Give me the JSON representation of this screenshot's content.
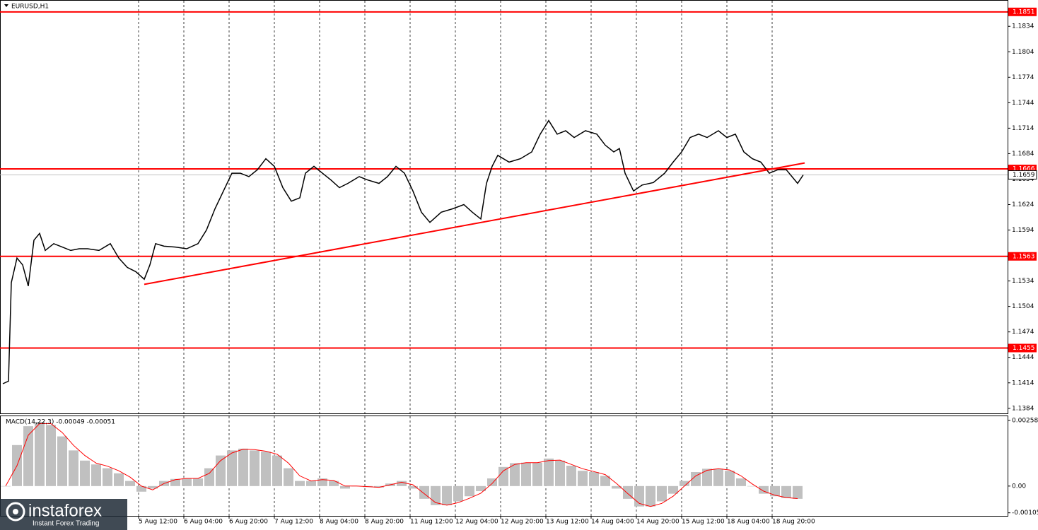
{
  "chart_data": [
    {
      "type": "line",
      "title": "EURUSD,H1",
      "color": "#000000",
      "x": [
        0,
        2,
        3,
        5,
        7,
        9,
        11,
        13,
        15,
        18,
        21,
        24,
        27,
        30,
        34,
        38,
        41,
        44,
        47,
        50,
        52,
        54,
        57,
        61,
        65,
        69,
        72,
        75,
        78,
        81,
        84,
        87,
        90,
        93,
        96,
        99,
        102,
        105,
        107,
        110,
        113,
        116,
        119,
        122,
        126,
        129,
        133,
        136,
        139,
        142,
        145,
        148,
        151,
        155,
        159,
        163,
        166,
        169,
        171,
        173,
        175,
        179,
        183,
        187,
        190,
        193,
        196,
        199,
        202,
        206,
        210,
        213,
        216,
        218,
        220,
        223,
        226,
        230,
        234,
        237,
        240,
        243,
        246,
        249,
        253,
        256,
        259,
        262,
        265,
        268,
        271,
        274,
        277,
        279,
        281,
        283
      ],
      "values": [
        1.1413,
        1.1416,
        1.1532,
        1.1561,
        1.1553,
        1.1528,
        1.1582,
        1.159,
        1.157,
        1.1578,
        1.1574,
        1.157,
        1.1572,
        1.1572,
        1.157,
        1.1578,
        1.1561,
        1.155,
        1.1545,
        1.1536,
        1.1553,
        1.1578,
        1.1575,
        1.1574,
        1.1572,
        1.1578,
        1.1594,
        1.1619,
        1.164,
        1.1661,
        1.1661,
        1.1657,
        1.1665,
        1.1678,
        1.1669,
        1.1644,
        1.1628,
        1.1632,
        1.1661,
        1.1669,
        1.1661,
        1.1653,
        1.1644,
        1.1649,
        1.1657,
        1.1653,
        1.1649,
        1.1657,
        1.1669,
        1.1661,
        1.164,
        1.1615,
        1.1603,
        1.1615,
        1.1619,
        1.1624,
        1.1615,
        1.1607,
        1.1649,
        1.1669,
        1.1682,
        1.1674,
        1.1678,
        1.1686,
        1.1707,
        1.1723,
        1.1707,
        1.1711,
        1.1703,
        1.1711,
        1.1707,
        1.1694,
        1.1686,
        1.169,
        1.1661,
        1.164,
        1.1647,
        1.165,
        1.1661,
        1.1674,
        1.1686,
        1.1703,
        1.1707,
        1.1703,
        1.1711,
        1.1703,
        1.1707,
        1.1686,
        1.1678,
        1.1674,
        1.1661,
        1.1665,
        1.1665,
        1.1657,
        1.1649,
        1.1659
      ],
      "xlim": [
        -1,
        355.25
      ],
      "xticks": [
        {
          "value": 48,
          "label": "5 Aug 12:00"
        },
        {
          "value": 64,
          "label": "6 Aug 04:00"
        },
        {
          "value": 80,
          "label": "6 Aug 20:00"
        },
        {
          "value": 96,
          "label": "7 Aug 12:00"
        },
        {
          "value": 112,
          "label": "8 Aug 04:00"
        },
        {
          "value": 128,
          "label": "8 Aug 20:00"
        },
        {
          "value": 144,
          "label": "11 Aug 12:00"
        },
        {
          "value": 160,
          "label": "12 Aug 04:00"
        },
        {
          "value": 176,
          "label": "12 Aug 20:00"
        },
        {
          "value": 192,
          "label": "13 Aug 12:00"
        },
        {
          "value": 208,
          "label": "14 Aug 04:00"
        },
        {
          "value": 224,
          "label": "14 Aug 20:00"
        },
        {
          "value": 240,
          "label": "15 Aug 12:00"
        },
        {
          "value": 256,
          "label": "18 Aug 04:00"
        },
        {
          "value": 272,
          "label": "18 Aug 20:00"
        }
      ],
      "ylim": [
        1.1378,
        1.1865
      ],
      "yticks": [
        1.1834,
        1.1804,
        1.1774,
        1.1744,
        1.1714,
        1.1684,
        1.1654,
        1.1624,
        1.1594,
        1.1534,
        1.1504,
        1.1474,
        1.1444,
        1.1414,
        1.1384
      ],
      "grid": true,
      "levels": [
        1.1851,
        1.1666,
        1.1563,
        1.1455
      ],
      "level_color": "#ff0000",
      "current_price": 1.1659,
      "trendline": {
        "x": [
          50,
          283.5
        ],
        "values": [
          1.153,
          1.1673
        ],
        "color": "#ff0000"
      }
    },
    {
      "type": "bar",
      "title": "MACD(14,22,3) -0.00049 -0.00051",
      "color": "#c0c0c0",
      "x": [
        1,
        5,
        9,
        13,
        17,
        21,
        25,
        29,
        33,
        37,
        41,
        45,
        49,
        53,
        57,
        61,
        65,
        69,
        73,
        77,
        81,
        85,
        89,
        93,
        97,
        101,
        105,
        109,
        113,
        117,
        121,
        125,
        129,
        133,
        137,
        141,
        145,
        149,
        153,
        157,
        161,
        165,
        169,
        173,
        177,
        181,
        185,
        189,
        193,
        197,
        201,
        205,
        209,
        213,
        217,
        221,
        225,
        229,
        233,
        237,
        241,
        245,
        249,
        253,
        257,
        261,
        265,
        269,
        273,
        277,
        281
      ],
      "values": [
        0,
        0.00161,
        0.00235,
        0.00252,
        0.0024,
        0.00195,
        0.0014,
        0.001,
        0.00085,
        0.0007,
        0.0005,
        0.0002,
        -0.00022,
        -0.0001,
        0.0002,
        0.00028,
        0.0003,
        0.0003,
        0.0007,
        0.0012,
        0.0014,
        0.00147,
        0.0014,
        0.00135,
        0.0012,
        0.0007,
        0.0002,
        0.0002,
        0.0003,
        0.0002,
        -0.0001,
        0,
        -4e-05,
        -6e-05,
        0.0001,
        0.0002,
        -0.0001,
        -0.0005,
        -0.00075,
        -0.00075,
        -0.0006,
        -0.0004,
        -0.0002,
        0.0003,
        0.00075,
        0.0009,
        0.00092,
        0.00092,
        0.00108,
        0.001,
        0.0008,
        0.0006,
        0.00055,
        0.0004,
        -0.0001,
        -0.0005,
        -0.0008,
        -0.0008,
        -0.0006,
        -0.0003,
        0.0002,
        0.00055,
        0.00068,
        0.00068,
        0.0006,
        0.0003,
        0,
        -0.0003,
        -0.0004,
        -0.00047,
        -0.0005
      ],
      "signal": [
        0,
        0.0008,
        0.002,
        0.00245,
        0.00245,
        0.0021,
        0.0016,
        0.0012,
        0.0009,
        0.00078,
        0.0006,
        0.00035,
        0,
        -0.00015,
        0.0001,
        0.00025,
        0.0003,
        0.0003,
        0.0005,
        0.001,
        0.0013,
        0.00145,
        0.00143,
        0.00137,
        0.00125,
        0.0009,
        0.0004,
        0.0002,
        0.00025,
        0.00022,
        0,
        0,
        -2e-05,
        -5e-05,
        5e-05,
        0.00015,
        5e-05,
        -0.0003,
        -0.00065,
        -0.00075,
        -0.00065,
        -0.00048,
        -0.00028,
        0.0001,
        0.0006,
        0.00085,
        0.00092,
        0.00092,
        0.001,
        0.00102,
        0.00085,
        0.00068,
        0.00057,
        0.00045,
        0.0001,
        -0.0003,
        -0.00068,
        -0.0008,
        -0.00068,
        -0.0004,
        0,
        0.0004,
        0.00062,
        0.00068,
        0.00063,
        0.0004,
        8e-05,
        -0.0002,
        -0.00036,
        -0.00045,
        -0.00049
      ],
      "signal_color": "#ff0000",
      "xlim": [
        -1,
        355.25
      ],
      "ylim": [
        -0.00117,
        0.00277
      ],
      "yticks": [
        0.00258,
        {
          "value": 0,
          "label": "0.00"
        },
        -0.00105
      ]
    }
  ],
  "logo": {
    "name": "instaforex",
    "tagline": "Instant Forex Trading"
  }
}
